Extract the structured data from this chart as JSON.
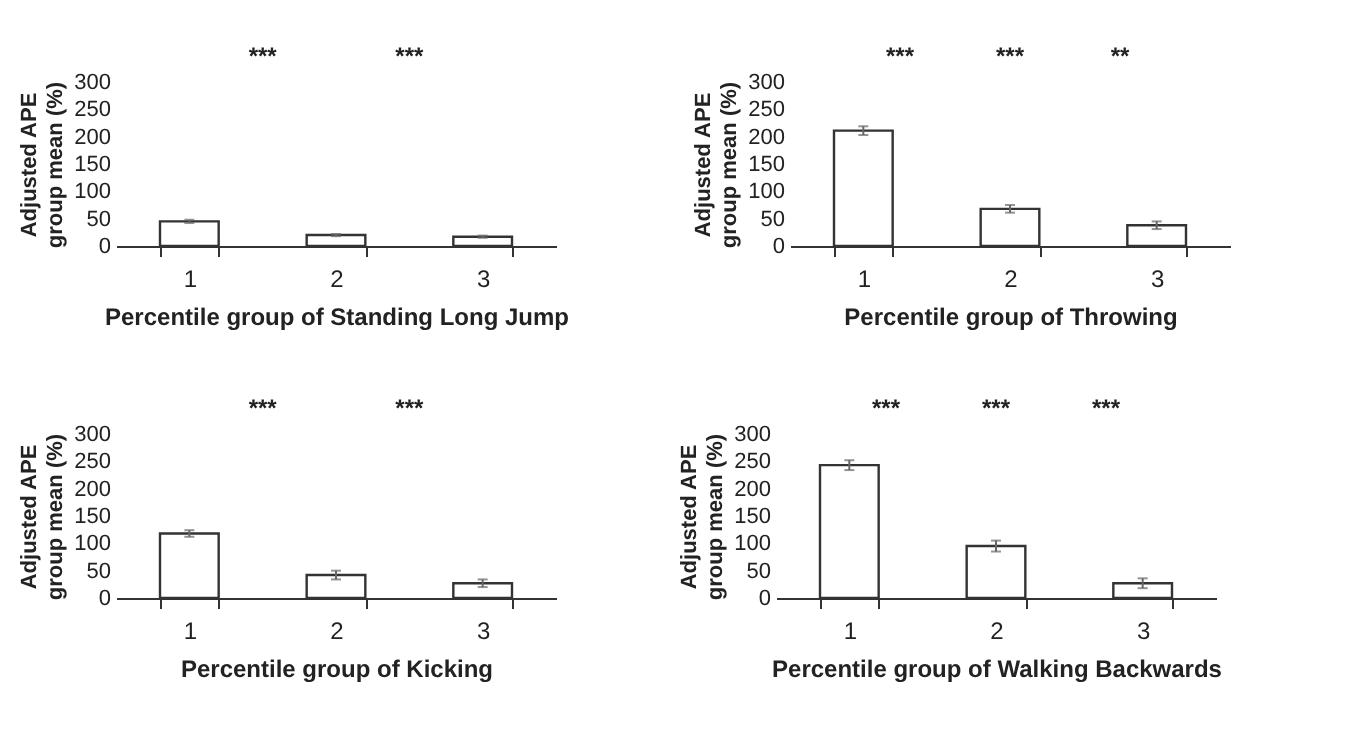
{
  "chart_data": [
    {
      "type": "bar",
      "categories": [
        "1",
        "2",
        "3"
      ],
      "values": [
        45,
        20,
        17
      ],
      "errors": [
        3,
        2,
        2
      ],
      "color": "#ffffff",
      "xlabel": "Percentile group of Standing Long Jump",
      "ylabel": "Adjusted APE group mean (%)",
      "ylim": [
        0,
        300
      ],
      "yticks": [
        0,
        50,
        100,
        150,
        200,
        250,
        300
      ],
      "grid": false,
      "annotations": [
        "***",
        "***"
      ]
    },
    {
      "type": "bar",
      "categories": [
        "1",
        "2",
        "3"
      ],
      "values": [
        211,
        68,
        38
      ],
      "errors": [
        8,
        7,
        7
      ],
      "color": "#ffffff",
      "xlabel": "Percentile group of Throwing",
      "ylabel": "Adjusted APE group mean (%)",
      "ylim": [
        0,
        300
      ],
      "yticks": [
        0,
        50,
        100,
        150,
        200,
        250,
        300
      ],
      "grid": false,
      "annotations": [
        "***",
        "***",
        "**"
      ]
    },
    {
      "type": "bar",
      "categories": [
        "1",
        "2",
        "3"
      ],
      "values": [
        118,
        42,
        27
      ],
      "errors": [
        6,
        8,
        7
      ],
      "color": "#ffffff",
      "xlabel": "Percentile group of Kicking",
      "ylabel": "Adjusted APE group mean (%)",
      "ylim": [
        0,
        300
      ],
      "yticks": [
        0,
        50,
        100,
        150,
        200,
        250,
        300
      ],
      "grid": false,
      "annotations": [
        "***",
        "***"
      ]
    },
    {
      "type": "bar",
      "categories": [
        "1",
        "2",
        "3"
      ],
      "values": [
        243,
        95,
        27
      ],
      "errors": [
        9,
        10,
        9
      ],
      "color": "#ffffff",
      "xlabel": "Percentile group of Walking Backwards",
      "ylabel": "Adjusted APE group mean (%)",
      "ylim": [
        0,
        300
      ],
      "yticks": [
        0,
        50,
        100,
        150,
        200,
        250,
        300
      ],
      "grid": false,
      "annotations": [
        "***",
        "***",
        "***"
      ]
    }
  ]
}
